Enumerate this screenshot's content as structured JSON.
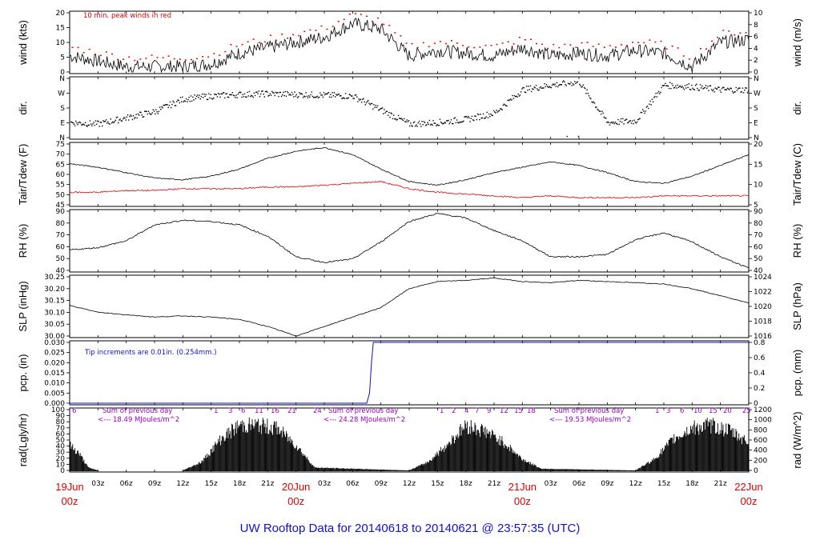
{
  "footer_title": "UW Rooftop Data for 20140618  to  20140621 @ 23:57:35  (UTC)",
  "x_axis": {
    "hour_labels": [
      "03z",
      "06z",
      "09z",
      "12z",
      "15z",
      "18z",
      "21z",
      "",
      "03z",
      "06z",
      "09z",
      "12z",
      "15z",
      "18z",
      "21z",
      "",
      "03z",
      "06z",
      "09z",
      "12z",
      "15z",
      "18z",
      "21z"
    ],
    "date_labels": [
      {
        "date": "19Jun",
        "time": "00z"
      },
      {
        "date": "20Jun",
        "time": "00z"
      },
      {
        "date": "21Jun",
        "time": "00z"
      },
      {
        "date": "22Jun",
        "time": "00z"
      }
    ]
  },
  "colors": {
    "axis": "#000000",
    "red": "#e00000",
    "blue": "#1010d0",
    "purple": "#9a00c0"
  },
  "chart_data": [
    {
      "type": "line",
      "ylabel_left": "wind (kts)",
      "ylabel_right": "wind (m/s)",
      "ylim": [
        0,
        22
      ],
      "yticks_left": [
        "0",
        "5",
        "10",
        "15",
        "20"
      ],
      "yticks_right": [
        "0",
        "2",
        "4",
        "6",
        "8",
        "10"
      ],
      "annotation": "10 min. peak winds in red",
      "series": [
        {
          "x": [
            0,
            3,
            6,
            9,
            12,
            15,
            18,
            21,
            24,
            27,
            30,
            33,
            36,
            39,
            42,
            45,
            48,
            51,
            54,
            57,
            60,
            63,
            66,
            69,
            72
          ],
          "values": [
            6,
            4,
            2,
            2,
            2,
            3,
            7,
            9,
            11,
            13,
            18,
            16,
            6,
            8,
            7,
            6,
            9,
            6,
            7,
            6,
            8,
            7,
            2,
            11,
            12
          ]
        }
      ]
    },
    {
      "type": "scatter",
      "ylabel_left": "dir.",
      "ylabel_right": "dir.",
      "yticks_left": [
        "N",
        "E",
        "S",
        "W",
        "N"
      ],
      "yticks_right": [
        "N",
        "E",
        "S",
        "W",
        "N"
      ],
      "series": [
        {
          "x": [
            0,
            3,
            6,
            9,
            12,
            15,
            18,
            21,
            24,
            27,
            30,
            33,
            36,
            39,
            42,
            45,
            48,
            51,
            54,
            57,
            60,
            63,
            66,
            69,
            72
          ],
          "values": [
            90,
            80,
            120,
            160,
            240,
            260,
            270,
            275,
            270,
            265,
            260,
            170,
            80,
            90,
            110,
            150,
            300,
            330,
            350,
            90,
            100,
            330,
            320,
            300,
            300
          ]
        }
      ]
    },
    {
      "type": "line",
      "ylabel_left": "Tair/Tdew (F)",
      "ylabel_right": "Tair/Tdew (C)",
      "ylim": [
        42,
        76
      ],
      "yticks_left": [
        "45",
        "50",
        "55",
        "60",
        "65",
        "70",
        "75"
      ],
      "yticks_right": [
        "5",
        "10",
        "15",
        "20"
      ],
      "series": [
        {
          "x": [
            0,
            3,
            6,
            9,
            12,
            15,
            18,
            21,
            24,
            27,
            30,
            33,
            36,
            39,
            42,
            45,
            48,
            51,
            54,
            57,
            60,
            63,
            66,
            69,
            72
          ],
          "values": [
            65,
            63,
            60,
            57,
            56,
            58,
            62,
            68,
            72,
            74,
            70,
            62,
            55,
            53,
            56,
            60,
            63,
            66,
            64,
            60,
            55,
            54,
            58,
            64,
            70
          ]
        },
        {
          "x": [
            0,
            3,
            6,
            9,
            12,
            15,
            18,
            21,
            24,
            27,
            30,
            33,
            36,
            39,
            42,
            45,
            48,
            51,
            54,
            57,
            60,
            63,
            66,
            69,
            72
          ],
          "values": [
            49,
            49,
            50,
            50,
            51,
            51,
            51,
            52,
            52,
            53,
            54,
            55,
            51,
            49,
            48,
            47,
            46,
            47,
            46,
            46,
            46,
            47,
            47,
            47,
            47
          ]
        }
      ]
    },
    {
      "type": "line",
      "ylabel_left": "RH (%)",
      "ylabel_right": "RH (%)",
      "ylim": [
        40,
        92
      ],
      "yticks_left": [
        "40",
        "50",
        "60",
        "70",
        "80",
        "90"
      ],
      "yticks_right": [
        "40",
        "50",
        "60",
        "70",
        "80",
        "90"
      ],
      "series": [
        {
          "x": [
            0,
            3,
            6,
            9,
            12,
            15,
            18,
            21,
            24,
            27,
            30,
            33,
            36,
            39,
            42,
            45,
            48,
            51,
            54,
            57,
            60,
            63,
            66,
            69,
            72
          ],
          "values": [
            58,
            60,
            66,
            80,
            84,
            83,
            80,
            70,
            52,
            47,
            50,
            65,
            83,
            90,
            86,
            75,
            66,
            52,
            52,
            54,
            67,
            73,
            65,
            52,
            42
          ]
        }
      ]
    },
    {
      "type": "line",
      "ylabel_left": "SLP (inHg)",
      "ylabel_right": "SLP (hPa)",
      "ylim": [
        30.0,
        30.25
      ],
      "yticks_left": [
        "30.00",
        "30.05",
        "30.10",
        "30.15",
        "30.20",
        "30.25"
      ],
      "yticks_right": [
        "1016",
        "1018",
        "1020",
        "1022",
        "1024"
      ],
      "series": [
        {
          "x": [
            0,
            3,
            6,
            9,
            12,
            15,
            18,
            21,
            24,
            27,
            30,
            33,
            36,
            39,
            42,
            45,
            48,
            51,
            54,
            57,
            60,
            63,
            66,
            69,
            72
          ],
          "values": [
            30.13,
            30.1,
            30.09,
            30.08,
            30.085,
            30.08,
            30.07,
            30.04,
            30.0,
            30.04,
            30.08,
            30.12,
            30.2,
            30.23,
            30.235,
            30.245,
            30.23,
            30.225,
            30.235,
            30.23,
            30.225,
            30.22,
            30.2,
            30.17,
            30.14
          ]
        }
      ]
    },
    {
      "type": "line",
      "ylabel_left": "pcp. (in)",
      "ylabel_right": "pcp. (mm)",
      "ylim": [
        0,
        0.03
      ],
      "yticks_left": [
        "0.000",
        "0.005",
        "0.010",
        "0.015",
        "0.020",
        "0.025",
        "0.030"
      ],
      "yticks_right": [
        "0",
        "0.2",
        "0.4",
        "0.6",
        "0.8"
      ],
      "annotation": "Tip increments are 0.01in. (0.254mm.)",
      "series": [
        {
          "x": [
            0,
            31.5,
            31.8,
            32.0,
            32.2,
            72
          ],
          "values": [
            0,
            0,
            0.005,
            0.02,
            0.03,
            0.03
          ]
        }
      ]
    },
    {
      "type": "area",
      "ylabel_left": "rad(Lgly/hr)",
      "ylabel_right": "rad (W/m^2)",
      "ylim": [
        0,
        100
      ],
      "yticks_left": [
        "0",
        "10",
        "20",
        "30",
        "40",
        "50",
        "60",
        "70",
        "80",
        "90",
        "100"
      ],
      "yticks_right": [
        "0",
        "200",
        "400",
        "600",
        "800",
        "1000",
        "1200"
      ],
      "day_annotations": [
        {
          "label": "Sum of previous day",
          "value": "<--- 18.49 MJoules/m^2"
        },
        {
          "label": "Sum of previous day",
          "value": "<--- 24.28 MJoules/m^2"
        },
        {
          "label": "Sum of previous day",
          "value": "<--- 19.53 MJoules/m^2"
        }
      ],
      "hour_numbers": [
        "1",
        "3",
        "6",
        "11",
        "16",
        "21",
        "24",
        "1",
        "2",
        "4",
        "7",
        "9",
        "12",
        "15",
        "18",
        "1",
        "3",
        "6",
        "10",
        "15",
        "20",
        "25"
      ],
      "series": [
        {
          "x": [
            0,
            1,
            2,
            3,
            12,
            14,
            16,
            18,
            20,
            22,
            24,
            26,
            36,
            38,
            40,
            42,
            44,
            46,
            48,
            50,
            60,
            62,
            64,
            66,
            68,
            70,
            72
          ],
          "values": [
            45,
            30,
            5,
            0,
            0,
            15,
            55,
            80,
            80,
            75,
            45,
            5,
            0,
            15,
            45,
            80,
            70,
            50,
            20,
            3,
            0,
            20,
            55,
            75,
            80,
            70,
            50
          ]
        }
      ]
    }
  ]
}
